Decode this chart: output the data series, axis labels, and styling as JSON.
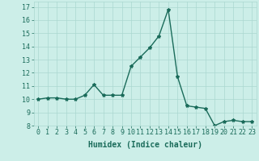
{
  "x": [
    0,
    1,
    2,
    3,
    4,
    5,
    6,
    7,
    8,
    9,
    10,
    11,
    12,
    13,
    14,
    15,
    16,
    17,
    18,
    19,
    20,
    21,
    22,
    23
  ],
  "y": [
    10.0,
    10.1,
    10.1,
    10.0,
    10.0,
    10.3,
    11.1,
    10.3,
    10.3,
    10.3,
    12.5,
    13.2,
    13.9,
    14.8,
    16.8,
    11.7,
    9.5,
    9.4,
    9.3,
    8.0,
    8.3,
    8.4,
    8.3,
    8.3
  ],
  "line_color": "#1a6b5a",
  "marker": "*",
  "marker_size": 3,
  "bg_color": "#cceee8",
  "grid_color": "#aad8d0",
  "xlabel": "Humidex (Indice chaleur)",
  "xlim": [
    -0.5,
    23.5
  ],
  "ylim": [
    8,
    17.4
  ],
  "yticks": [
    8,
    9,
    10,
    11,
    12,
    13,
    14,
    15,
    16,
    17
  ],
  "xticks": [
    0,
    1,
    2,
    3,
    4,
    5,
    6,
    7,
    8,
    9,
    10,
    11,
    12,
    13,
    14,
    15,
    16,
    17,
    18,
    19,
    20,
    21,
    22,
    23
  ],
  "xtick_labels": [
    "0",
    "1",
    "2",
    "3",
    "4",
    "5",
    "6",
    "7",
    "8",
    "9",
    "10",
    "11",
    "12",
    "13",
    "14",
    "15",
    "16",
    "17",
    "18",
    "19",
    "20",
    "21",
    "22",
    "23"
  ],
  "tick_fontsize": 6,
  "xlabel_fontsize": 7,
  "line_width": 1.0
}
